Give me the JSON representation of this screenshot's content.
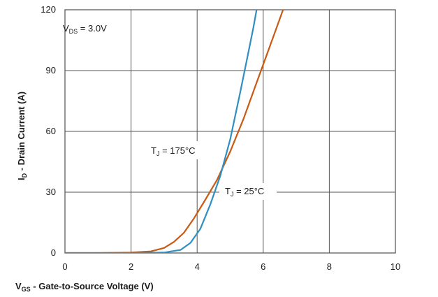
{
  "chart_data": {
    "type": "line",
    "title": "",
    "xlabel_prefix": "V",
    "xlabel_sub": "GS",
    "xlabel_rest": " - Gate-to-Source Voltage (V)",
    "ylabel_prefix": "I",
    "ylabel_sub": "D",
    "ylabel_rest": " - Drain Current (A)",
    "xlim": [
      0,
      10
    ],
    "ylim": [
      0,
      120
    ],
    "xticks": [
      0,
      2,
      4,
      6,
      8,
      10
    ],
    "yticks": [
      0,
      30,
      60,
      90,
      120
    ],
    "grid": true,
    "annotations": [
      {
        "prefix": "V",
        "sub": "DS",
        "rest": " = 3.0V"
      },
      {
        "prefix": "T",
        "sub": "J",
        "rest": " = 175°C"
      },
      {
        "prefix": "T",
        "sub": "J",
        "rest": " = 25°C"
      }
    ],
    "series": [
      {
        "color": "#c85a14",
        "x": [
          0,
          1,
          2,
          2.6,
          3.0,
          3.3,
          3.6,
          3.9,
          4.2,
          4.6,
          5.0,
          5.4,
          5.8,
          6.2,
          6.6
        ],
        "y": [
          0,
          0,
          0.2,
          0.8,
          2.5,
          5.5,
          10,
          17,
          25,
          36,
          50,
          66,
          84,
          102,
          120
        ]
      },
      {
        "color": "#2f8fc0",
        "x": [
          0,
          1,
          2,
          3.0,
          3.5,
          3.8,
          4.1,
          4.4,
          4.7,
          5.0,
          5.3,
          5.5,
          5.7,
          5.8
        ],
        "y": [
          0,
          0,
          0,
          0.2,
          1.5,
          5,
          12,
          24,
          38,
          56,
          79,
          95,
          111,
          120
        ]
      }
    ]
  },
  "colors": {
    "grid": "#555555",
    "axis": "#333333",
    "background": "#ffffff"
  }
}
